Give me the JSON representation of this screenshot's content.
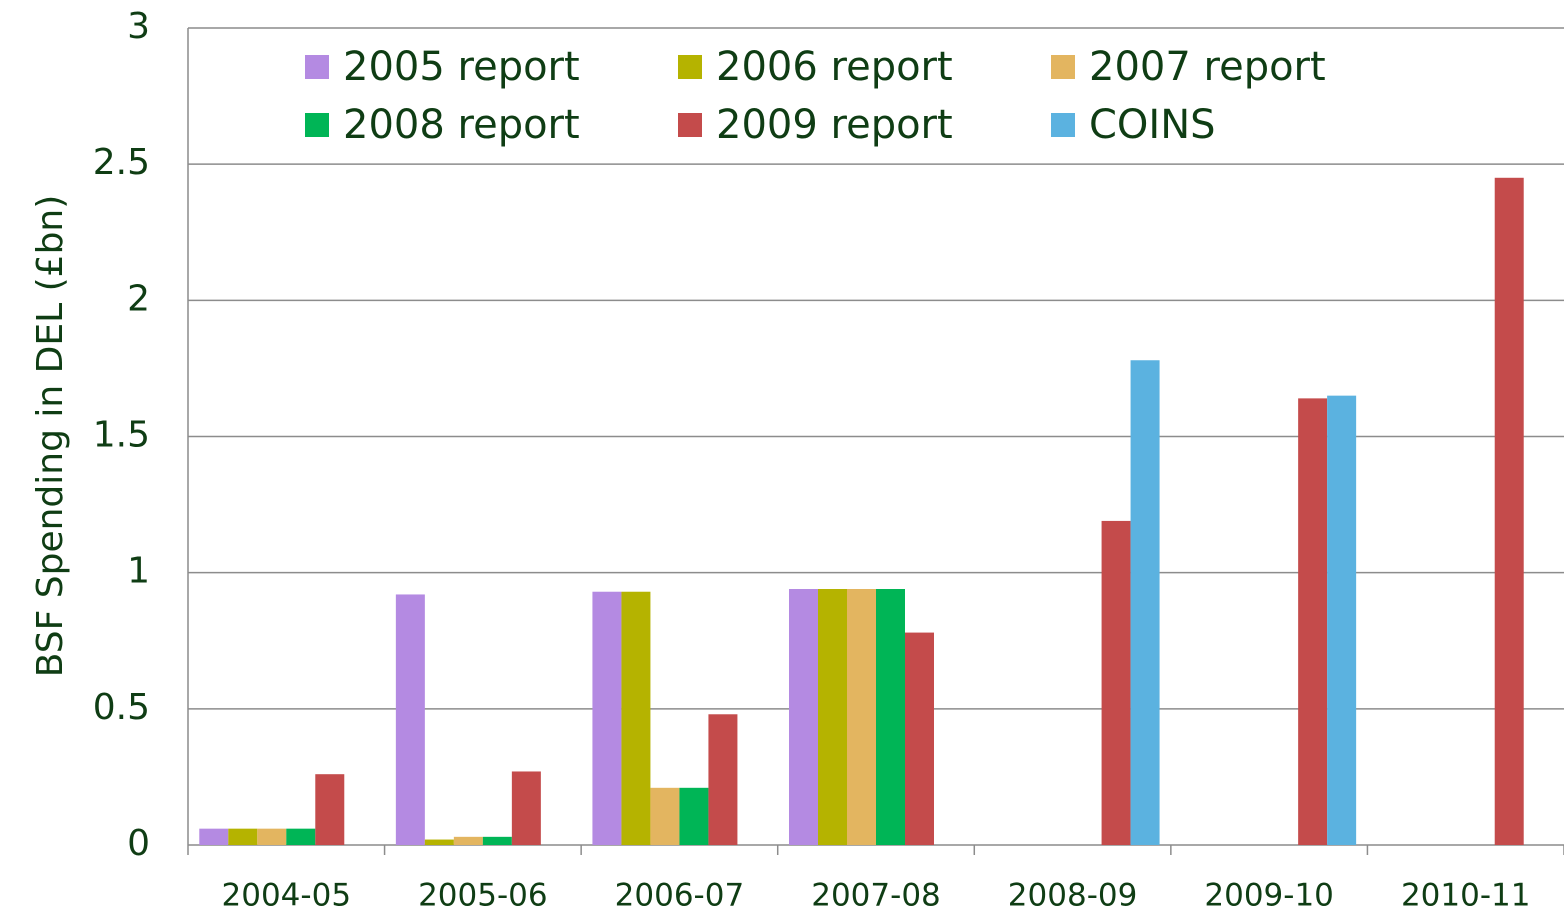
{
  "chart_data": {
    "type": "bar",
    "y_label": "BSF Spending in DEL (£bn)",
    "categories": [
      "2004-05",
      "2005-06",
      "2006-07",
      "2007-08",
      "2008-09",
      "2009-10",
      "2010-11"
    ],
    "series": [
      {
        "name": "2005 report",
        "color": "#b48ae2",
        "values": [
          0.06,
          0.92,
          0.93,
          0.94,
          null,
          null,
          null
        ]
      },
      {
        "name": "2006 report",
        "color": "#b5b300",
        "values": [
          0.06,
          0.02,
          0.93,
          0.94,
          null,
          null,
          null
        ]
      },
      {
        "name": "2007 report",
        "color": "#e3b560",
        "values": [
          0.06,
          0.03,
          0.21,
          0.94,
          null,
          null,
          null
        ]
      },
      {
        "name": "2008 report",
        "color": "#00b556",
        "values": [
          0.06,
          0.03,
          0.21,
          0.94,
          null,
          null,
          null
        ]
      },
      {
        "name": "2009 report",
        "color": "#c44b4b",
        "values": [
          0.26,
          0.27,
          0.48,
          0.78,
          1.19,
          1.64,
          2.45
        ]
      },
      {
        "name": "COINS",
        "color": "#5bb2e0",
        "values": [
          null,
          null,
          null,
          null,
          1.78,
          1.65,
          null
        ]
      }
    ],
    "ylim": [
      0,
      3
    ],
    "yticks": [
      0,
      0.5,
      1,
      1.5,
      2,
      2.5,
      3
    ],
    "grid": true,
    "legend": "top"
  }
}
